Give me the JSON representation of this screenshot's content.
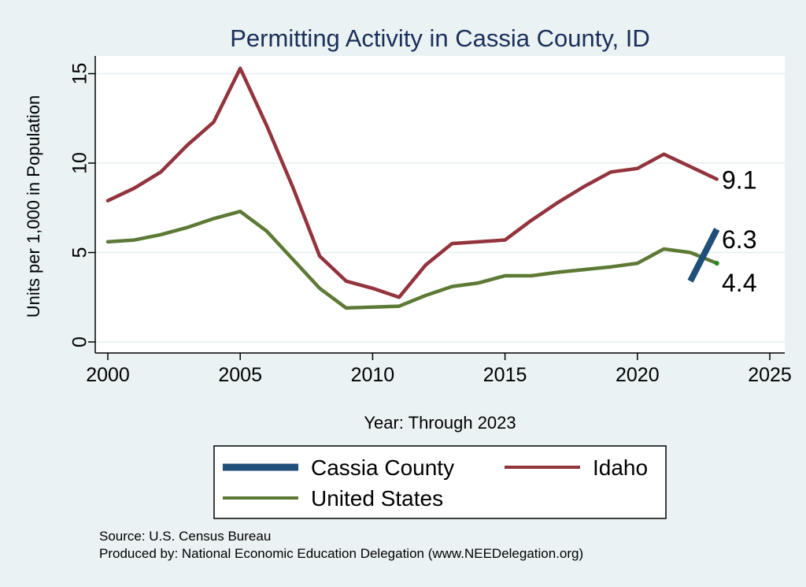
{
  "colors": {
    "background": "#eaf2f3",
    "plot_bg": "#ffffff",
    "cassia": "#1f4e79",
    "idaho": "#93343d",
    "us": "#5c7a35",
    "grid": "#e6eef0",
    "title": "#1a2f5a"
  },
  "chart_data": {
    "type": "line",
    "title": "Permitting Activity in Cassia County, ID",
    "xlabel": "Year: Through 2023",
    "ylabel": "Units per 1,000 in Population",
    "xlim": [
      2000,
      2025
    ],
    "ylim": [
      0,
      15
    ],
    "x_ticks": [
      2000,
      2005,
      2010,
      2015,
      2020,
      2025
    ],
    "y_ticks": [
      0,
      5,
      10,
      15
    ],
    "x_tick_labels": [
      "2000",
      "2005",
      "2010",
      "2015",
      "2020",
      "2025"
    ],
    "y_tick_labels": [
      "0",
      "5",
      "10",
      "15"
    ],
    "legend_position": "bottom",
    "series": [
      {
        "name": "Cassia County",
        "key": "cassia",
        "x": [
          2022,
          2023
        ],
        "y": [
          3.4,
          6.3
        ],
        "end_label": "6.3"
      },
      {
        "name": "Idaho",
        "key": "idaho",
        "x": [
          2000,
          2001,
          2002,
          2003,
          2004,
          2005,
          2006,
          2007,
          2008,
          2009,
          2010,
          2011,
          2012,
          2013,
          2014,
          2015,
          2016,
          2017,
          2018,
          2019,
          2020,
          2021,
          2022,
          2023
        ],
        "y": [
          7.9,
          8.6,
          9.5,
          11.0,
          12.3,
          15.3,
          12.1,
          8.6,
          4.8,
          3.4,
          3.0,
          2.5,
          4.3,
          5.5,
          5.6,
          5.7,
          6.8,
          7.8,
          8.7,
          9.5,
          9.7,
          10.5,
          9.8,
          9.1
        ],
        "end_label": "9.1"
      },
      {
        "name": "United States",
        "key": "us",
        "x": [
          2000,
          2001,
          2002,
          2003,
          2004,
          2005,
          2006,
          2007,
          2008,
          2009,
          2010,
          2011,
          2012,
          2013,
          2014,
          2015,
          2016,
          2017,
          2018,
          2019,
          2020,
          2021,
          2022,
          2023
        ],
        "y": [
          5.6,
          5.7,
          6.0,
          6.4,
          6.9,
          7.3,
          6.2,
          4.6,
          3.0,
          1.9,
          1.95,
          2.0,
          2.6,
          3.1,
          3.3,
          3.7,
          3.7,
          3.9,
          4.05,
          4.2,
          4.4,
          5.2,
          5.0,
          4.4
        ],
        "end_label": "4.4"
      }
    ]
  },
  "legend": {
    "items": [
      {
        "label": "Cassia County",
        "key": "cassia"
      },
      {
        "label": "Idaho",
        "key": "idaho"
      },
      {
        "label": "United States",
        "key": "us"
      }
    ]
  },
  "notes": {
    "source": "Source: U.S. Census Bureau",
    "produced_by": "Produced by: National Economic Education Delegation (www.NEEDelegation.org)"
  }
}
